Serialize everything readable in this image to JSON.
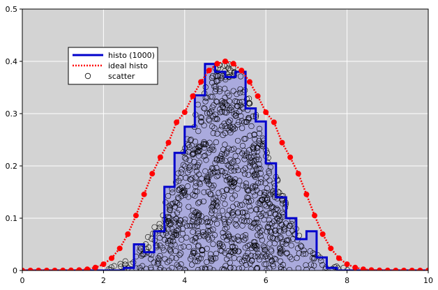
{
  "chart_data": {
    "type": "line",
    "xlim": [
      0,
      10
    ],
    "ylim": [
      0,
      0.5
    ],
    "x_ticks": [
      0,
      2,
      4,
      6,
      8,
      10
    ],
    "y_ticks": [
      0,
      0.1,
      0.2,
      0.3,
      0.4,
      0.5
    ],
    "x_tick_labels": [
      "0",
      "2",
      "4",
      "6",
      "8",
      "10"
    ],
    "y_tick_labels": [
      "0",
      "0.1",
      "0.2",
      "0.3",
      "0.4",
      "0.5"
    ],
    "grid": true,
    "legend_position": "upper-left",
    "colors": {
      "background": "#d3d3d3",
      "grid": "#ffffff",
      "histogram_line": "#0000cc",
      "histogram_fill": "#aaaadd",
      "ideal": "#ff0000",
      "scatter_edge": "#000000"
    },
    "histogram": {
      "name": "histo (1000)",
      "bin_edges": [
        0.0,
        0.25,
        0.5,
        0.75,
        1.0,
        1.25,
        1.5,
        1.75,
        2.0,
        2.25,
        2.5,
        2.75,
        3.0,
        3.25,
        3.5,
        3.75,
        4.0,
        4.25,
        4.5,
        4.75,
        5.0,
        5.25,
        5.5,
        5.75,
        6.0,
        6.25,
        6.5,
        6.75,
        7.0,
        7.25,
        7.5,
        7.75,
        8.0,
        8.25,
        8.5,
        8.75,
        9.0,
        9.25,
        9.5,
        9.75,
        10.0
      ],
      "values": [
        0,
        0,
        0,
        0,
        0,
        0,
        0,
        0,
        0,
        0,
        0.005,
        0.05,
        0.035,
        0.075,
        0.16,
        0.225,
        0.275,
        0.335,
        0.395,
        0.38,
        0.37,
        0.38,
        0.31,
        0.285,
        0.205,
        0.14,
        0.1,
        0.06,
        0.075,
        0.025,
        0.005,
        0,
        0,
        0,
        0,
        0,
        0,
        0,
        0,
        0
      ]
    },
    "ideal": {
      "name": "ideal histo",
      "x": [
        0.0,
        0.2,
        0.4,
        0.6,
        0.8,
        1.0,
        1.2,
        1.4,
        1.6,
        1.8,
        2.0,
        2.2,
        2.4,
        2.6,
        2.8,
        3.0,
        3.2,
        3.4,
        3.6,
        3.8,
        4.0,
        4.2,
        4.4,
        4.6,
        4.8,
        5.0,
        5.2,
        5.4,
        5.6,
        5.8,
        6.0,
        6.2,
        6.4,
        6.6,
        6.8,
        7.0,
        7.2,
        7.4,
        7.6,
        7.8,
        8.0,
        8.2,
        8.4,
        8.6,
        8.8,
        9.0,
        9.2,
        9.4,
        9.6,
        9.8,
        10.0
      ],
      "y": [
        0.0,
        0.0,
        0.0,
        0.0,
        0.0,
        0.0001,
        0.0003,
        0.0009,
        0.0024,
        0.0056,
        0.012,
        0.0235,
        0.0422,
        0.0695,
        0.1051,
        0.1456,
        0.1851,
        0.2165,
        0.2445,
        0.2835,
        0.3026,
        0.3335,
        0.3607,
        0.3825,
        0.3955,
        0.4,
        0.3955,
        0.3825,
        0.3607,
        0.3335,
        0.3026,
        0.2835,
        0.2445,
        0.2165,
        0.1851,
        0.1456,
        0.1051,
        0.0695,
        0.0422,
        0.0235,
        0.012,
        0.0056,
        0.0024,
        0.0009,
        0.0003,
        0.0001,
        0.0,
        0.0,
        0.0,
        0.0,
        0.0
      ]
    },
    "scatter": {
      "name": "scatter",
      "count": 1000,
      "mean": 5.0,
      "sd": 1.0
    }
  }
}
